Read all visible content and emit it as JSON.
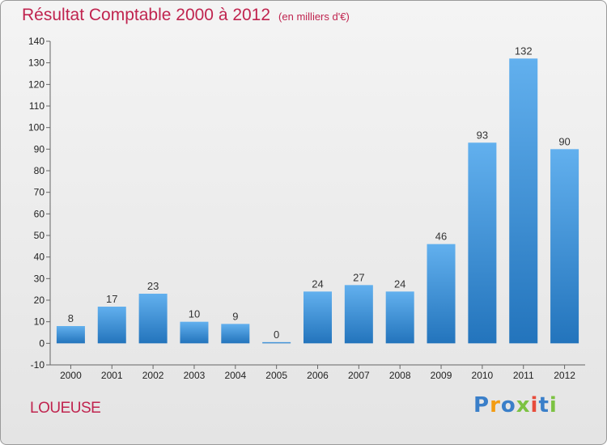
{
  "title": {
    "main": "Résultat Comptable 2000 à 2012",
    "sub": "(en milliers d'€)"
  },
  "commune": "LOUEUSE",
  "logo": {
    "letters": [
      "P",
      "r",
      "o",
      "x",
      "i",
      "t",
      "i"
    ],
    "colors": [
      "#3a7fc9",
      "#f39c12",
      "#3a7fc9",
      "#7cc242",
      "#e74c3c",
      "#3a7fc9",
      "#7cc242"
    ]
  },
  "colors": {
    "bar_top": "#62b0ee",
    "bar_bottom": "#2374bc",
    "accent": "#c0244f"
  },
  "chart_data": {
    "type": "bar",
    "categories": [
      "2000",
      "2001",
      "2002",
      "2003",
      "2004",
      "2005",
      "2006",
      "2007",
      "2008",
      "2009",
      "2010",
      "2011",
      "2012"
    ],
    "values": [
      8,
      17,
      23,
      10,
      9,
      0,
      24,
      27,
      24,
      46,
      93,
      132,
      90
    ],
    "data_labels": [
      "8",
      "17",
      "23",
      "10",
      "9",
      "0",
      "24",
      "27",
      "24",
      "46",
      "93",
      "132",
      "90"
    ],
    "title": "Résultat Comptable 2000 à 2012",
    "xlabel": "",
    "ylabel": "",
    "ylim": [
      -10,
      140
    ],
    "yticks": [
      -10,
      0,
      10,
      20,
      30,
      40,
      50,
      60,
      70,
      80,
      90,
      100,
      110,
      120,
      130,
      140
    ],
    "ytick_labels": [
      "-10",
      "0",
      "10",
      "20",
      "30",
      "40",
      "50",
      "60",
      "70",
      "80",
      "90",
      "100",
      "110",
      "120",
      "130",
      "140"
    ],
    "grid": false,
    "legend": "none"
  }
}
